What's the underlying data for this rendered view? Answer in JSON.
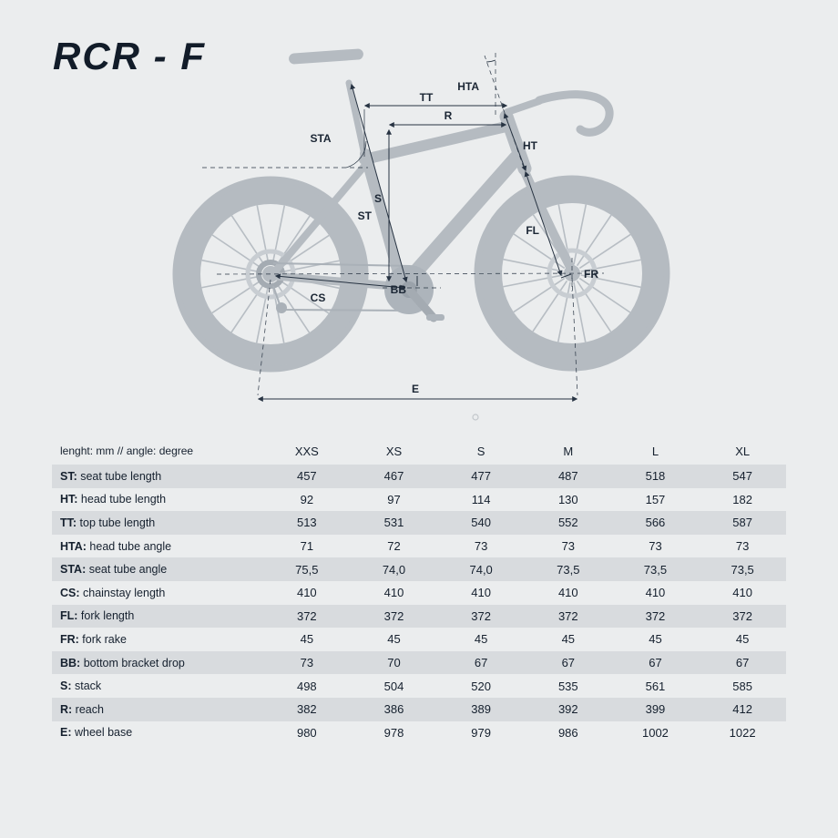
{
  "title": "RCR - F",
  "diagram": {
    "labels": {
      "tt": "TT",
      "r": "R",
      "hta": "HTA",
      "ht": "HT",
      "sta": "STA",
      "s": "S",
      "st": "ST",
      "fl": "FL",
      "fr": "FR",
      "cs": "CS",
      "bb": "BB",
      "e": "E"
    }
  },
  "table": {
    "unit_header": "lenght: mm // angle: degree",
    "sizes": [
      "XXS",
      "XS",
      "S",
      "M",
      "L",
      "XL"
    ],
    "rows": [
      {
        "abbr": "ST",
        "label": "seat tube length",
        "values": [
          "457",
          "467",
          "477",
          "487",
          "518",
          "547"
        ]
      },
      {
        "abbr": "HT",
        "label": "head tube length",
        "values": [
          "92",
          "97",
          "114",
          "130",
          "157",
          "182"
        ]
      },
      {
        "abbr": "TT",
        "label": "top tube length",
        "values": [
          "513",
          "531",
          "540",
          "552",
          "566",
          "587"
        ]
      },
      {
        "abbr": "HTA",
        "label": "head tube angle",
        "values": [
          "71",
          "72",
          "73",
          "73",
          "73",
          "73"
        ]
      },
      {
        "abbr": "STA",
        "label": "seat tube angle",
        "values": [
          "75,5",
          "74,0",
          "74,0",
          "73,5",
          "73,5",
          "73,5"
        ]
      },
      {
        "abbr": "CS",
        "label": "chainstay length",
        "values": [
          "410",
          "410",
          "410",
          "410",
          "410",
          "410"
        ]
      },
      {
        "abbr": "FL",
        "label": "fork length",
        "values": [
          "372",
          "372",
          "372",
          "372",
          "372",
          "372"
        ]
      },
      {
        "abbr": "FR",
        "label": "fork rake",
        "values": [
          "45",
          "45",
          "45",
          "45",
          "45",
          "45"
        ]
      },
      {
        "abbr": "BB",
        "label": "bottom bracket drop",
        "values": [
          "73",
          "70",
          "67",
          "67",
          "67",
          "67"
        ]
      },
      {
        "abbr": "S",
        "label": "stack",
        "values": [
          "498",
          "504",
          "520",
          "535",
          "561",
          "585"
        ]
      },
      {
        "abbr": "R",
        "label": "reach",
        "values": [
          "382",
          "386",
          "389",
          "392",
          "399",
          "412"
        ]
      },
      {
        "abbr": "E",
        "label": "wheel base",
        "values": [
          "980",
          "978",
          "979",
          "986",
          "1002",
          "1022"
        ]
      }
    ]
  },
  "colors": {
    "background": "#ebedee",
    "row_band": "#d8dbde",
    "silhouette": "#b5bbc1",
    "dimension_line": "#273342",
    "text": "#15202e"
  }
}
